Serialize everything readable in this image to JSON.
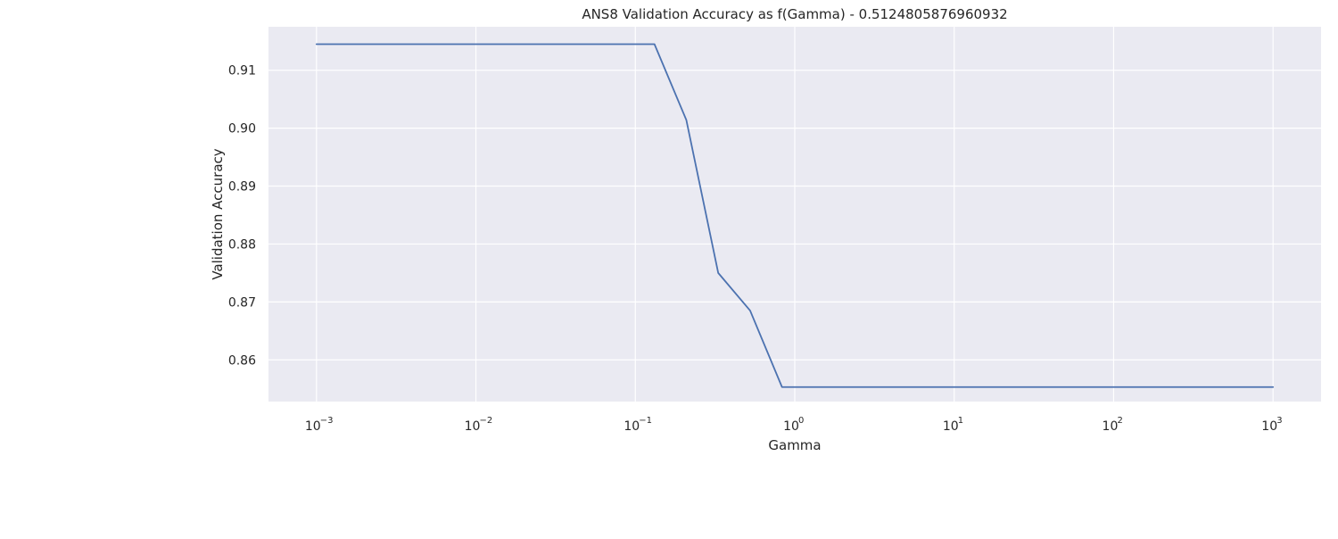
{
  "chart_data": {
    "type": "line",
    "title": "ANS8 Validation Accuracy as f(Gamma) - 0.5124805876960932",
    "xlabel": "Gamma",
    "ylabel": "Validation Accuracy",
    "x_scale": "log",
    "xlim": [
      0.0005,
      2000
    ],
    "ylim": [
      0.8528,
      0.9175
    ],
    "x_ticks": [
      {
        "value": 0.001,
        "base": "10",
        "exp": "−3"
      },
      {
        "value": 0.01,
        "base": "10",
        "exp": "−2"
      },
      {
        "value": 0.1,
        "base": "10",
        "exp": "−1"
      },
      {
        "value": 1,
        "base": "10",
        "exp": "0"
      },
      {
        "value": 10,
        "base": "10",
        "exp": "1"
      },
      {
        "value": 100,
        "base": "10",
        "exp": "2"
      },
      {
        "value": 1000,
        "base": "10",
        "exp": "3"
      }
    ],
    "y_ticks": [
      {
        "value": 0.86,
        "label": "0.86"
      },
      {
        "value": 0.87,
        "label": "0.87"
      },
      {
        "value": 0.88,
        "label": "0.88"
      },
      {
        "value": 0.89,
        "label": "0.89"
      },
      {
        "value": 0.9,
        "label": "0.90"
      },
      {
        "value": 0.91,
        "label": "0.91"
      }
    ],
    "grid": true,
    "background_color": "#eaeaf2",
    "grid_color": "#ffffff",
    "series": [
      {
        "color": "#4c72b0",
        "x": [
          0.001,
          0.00158,
          0.00251,
          0.00398,
          0.00631,
          0.01,
          0.0158,
          0.0251,
          0.0398,
          0.0631,
          0.1,
          0.1318,
          0.2089,
          0.3311,
          0.5248,
          0.8318,
          1.318,
          2.089,
          3.311,
          5.248,
          10,
          20.89,
          52.48,
          100,
          208.9,
          524.8,
          1000
        ],
        "y": [
          0.9145,
          0.9145,
          0.9145,
          0.9145,
          0.9145,
          0.9145,
          0.9145,
          0.9145,
          0.9145,
          0.9145,
          0.9145,
          0.9145,
          0.9014,
          0.875,
          0.8685,
          0.8553,
          0.8553,
          0.8553,
          0.8553,
          0.8553,
          0.8553,
          0.8553,
          0.8553,
          0.8553,
          0.8553,
          0.8553,
          0.8553
        ]
      }
    ]
  }
}
